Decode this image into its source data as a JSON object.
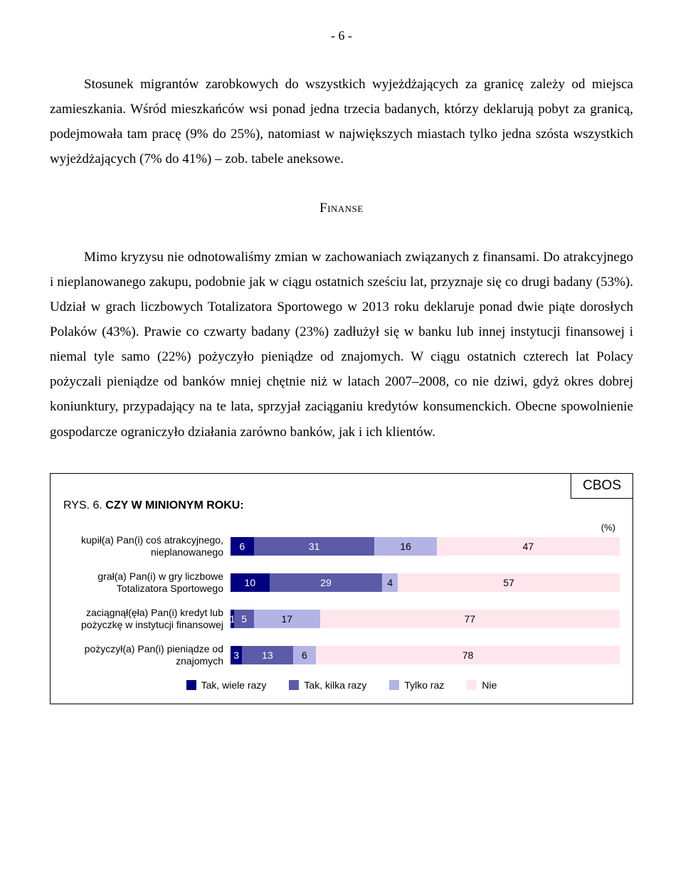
{
  "page_number": "- 6 -",
  "para1": "Stosunek migrantów zarobkowych do wszystkich wyjeżdżających za granicę zależy od miejsca zamieszkania. Wśród mieszkańców wsi ponad jedna trzecia badanych, którzy deklarują pobyt za granicą, podejmowała tam pracę (9% do 25%), natomiast w największych miastach tylko jedna szósta wszystkich wyjeżdżających (7% do 41%) – zob. tabele aneksowe.",
  "section_heading": "Finanse",
  "para2": "Mimo kryzysu nie odnotowaliśmy zmian w zachowaniach związanych z finansami. Do atrakcyjnego i nieplanowanego zakupu, podobnie jak w ciągu ostatnich sześciu lat, przyznaje się co drugi badany (53%). Udział w grach liczbowych Totalizatora Sportowego w 2013 roku deklaruje ponad dwie piąte dorosłych Polaków (43%). Prawie co czwarty badany (23%) zadłużył się w banku lub innej instytucji finansowej i niemal tyle samo (22%) pożyczyło pieniądze od znajomych. W ciągu ostatnich czterech lat Polacy pożyczali pieniądze od banków mniej chętnie niż w latach 2007–2008, co nie dziwi, gdyż okres dobrej koniunktury, przypadający na te lata, sprzyjał zaciąganiu kredytów konsumenckich. Obecne spowolnienie gospodarcze ograniczyło działania zarówno banków, jak i ich klientów.",
  "chart": {
    "cbos": "CBOS",
    "rys_label": "RYS. 6.",
    "title": "CZY W MINIONYM ROKU:",
    "pct_label": "(%)",
    "colors": {
      "tak_wiele": "#000080",
      "tak_kilka": "#5b5ba8",
      "tylko_raz": "#b3b3e6",
      "nie": "#ffe6ec"
    },
    "legend": [
      {
        "key": "tak_wiele",
        "label": "Tak, wiele razy"
      },
      {
        "key": "tak_kilka",
        "label": "Tak, kilka razy"
      },
      {
        "key": "tylko_raz",
        "label": "Tylko raz"
      },
      {
        "key": "nie",
        "label": "Nie"
      }
    ],
    "rows": [
      {
        "label": "kupił(a) Pan(i) coś atrakcyjnego, nieplanowanego",
        "values": [
          6,
          31,
          16,
          47
        ]
      },
      {
        "label": "grał(a) Pan(i) w gry liczbowe Totalizatora Sportowego",
        "values": [
          10,
          29,
          4,
          57
        ]
      },
      {
        "label": "zaciągnął(ęła) Pan(i) kredyt lub pożyczkę w instytucji finansowej",
        "values": [
          1,
          5,
          17,
          77
        ],
        "labels": [
          "1",
          "5",
          "17",
          "77"
        ]
      },
      {
        "label": "pożyczył(a) Pan(i) pieniądze od znajomych",
        "values": [
          3,
          13,
          6,
          78
        ]
      }
    ]
  }
}
